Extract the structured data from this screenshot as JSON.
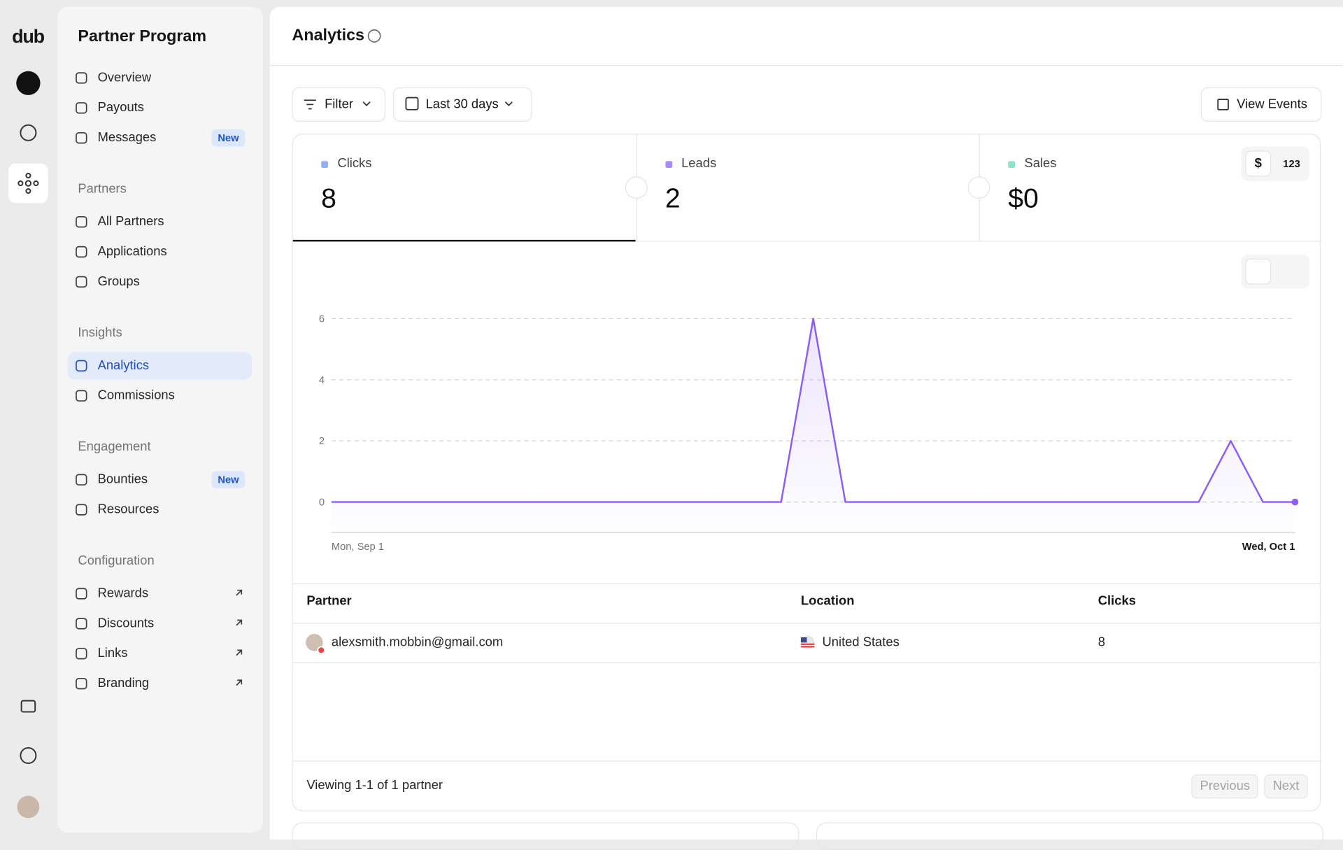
{
  "rail": {
    "logo": "dub"
  },
  "sidebar": {
    "title": "Partner Program",
    "groups": [
      {
        "items": [
          {
            "label": "Overview"
          },
          {
            "label": "Payouts"
          },
          {
            "label": "Messages",
            "badge": "New"
          }
        ]
      },
      {
        "heading": "Partners",
        "items": [
          {
            "label": "All Partners"
          },
          {
            "label": "Applications"
          },
          {
            "label": "Groups"
          }
        ]
      },
      {
        "heading": "Insights",
        "items": [
          {
            "label": "Analytics",
            "active": true
          },
          {
            "label": "Commissions"
          }
        ]
      },
      {
        "heading": "Engagement",
        "items": [
          {
            "label": "Bounties",
            "badge": "New"
          },
          {
            "label": "Resources"
          }
        ]
      },
      {
        "heading": "Configuration",
        "items": [
          {
            "label": "Rewards",
            "external": true
          },
          {
            "label": "Discounts",
            "external": true
          },
          {
            "label": "Links",
            "external": true
          },
          {
            "label": "Branding",
            "external": true
          }
        ]
      }
    ]
  },
  "header": {
    "title": "Analytics"
  },
  "toolbar": {
    "filter": "Filter",
    "date_range": "Last 30 days",
    "view_events": "View Events"
  },
  "metrics": [
    {
      "label": "Clicks",
      "value": 8,
      "color": "#93aef2"
    },
    {
      "label": "Leads",
      "value": 2,
      "color": "#a78bfa"
    },
    {
      "label": "Sales",
      "value": "$0",
      "color": "#8ee3c4"
    }
  ],
  "metric_toggle": [
    "$",
    "123"
  ],
  "chart_data": {
    "type": "area",
    "categories": [
      "Mon, Sep 1",
      null,
      null,
      null,
      null,
      null,
      null,
      null,
      null,
      null,
      null,
      null,
      null,
      null,
      null,
      null,
      null,
      null,
      null,
      null,
      null,
      null,
      null,
      null,
      null,
      null,
      null,
      null,
      null,
      null,
      "Wed, Oct 1"
    ],
    "series": [
      {
        "color": "#8b5cf6",
        "values": [
          0,
          0,
          0,
          0,
          0,
          0,
          0,
          0,
          0,
          0,
          0,
          0,
          0,
          0,
          0,
          6,
          0,
          0,
          0,
          0,
          0,
          0,
          0,
          0,
          0,
          0,
          0,
          0,
          2,
          0,
          0
        ]
      }
    ],
    "ylim": [
      -1,
      6
    ],
    "yticks": [
      0,
      2,
      4,
      6
    ],
    "grid": true
  },
  "table": {
    "columns": [
      "Partner",
      "Location",
      "Clicks"
    ],
    "rows": [
      [
        "alexsmith.mobbin@gmail.com",
        "United States",
        8
      ]
    ]
  },
  "footer": {
    "summary": "Viewing 1-1 of 1 partner",
    "previous": "Previous",
    "next": "Next"
  }
}
